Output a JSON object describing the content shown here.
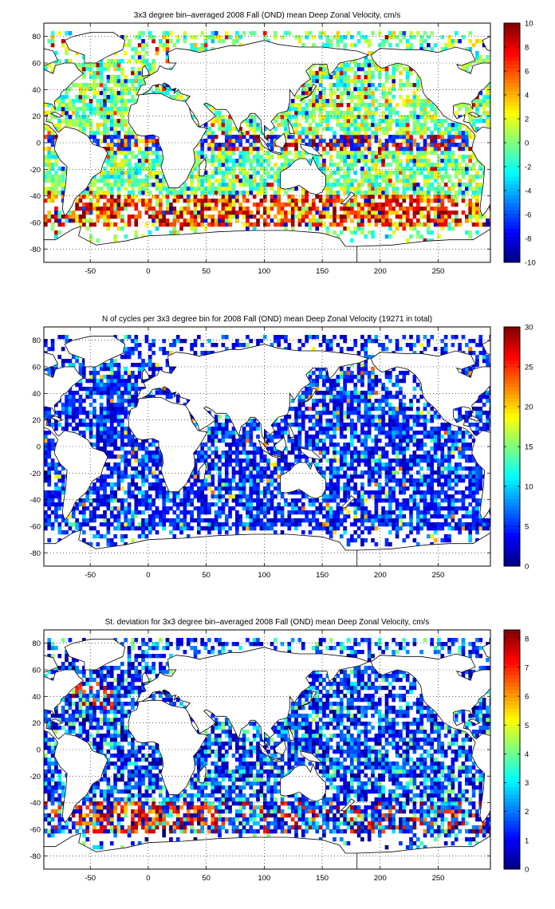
{
  "chart_data": [
    {
      "type": "heatmap",
      "title": "3x3 degree bin–averaged 2008 Fall (OND) mean Deep Zonal Velocity, cm/s",
      "xlim": [
        -90,
        295
      ],
      "ylim": [
        -90,
        90
      ],
      "xticks": [
        -50,
        0,
        50,
        100,
        150,
        200,
        250
      ],
      "yticks": [
        -80,
        -60,
        -40,
        -20,
        0,
        20,
        40,
        60,
        80
      ],
      "colorbar": {
        "min": -10,
        "max": 10,
        "ticks": [
          -10,
          -8,
          -6,
          -4,
          -2,
          0,
          2,
          4,
          6,
          8,
          10
        ],
        "colormap": "jet"
      },
      "bin_size_deg": 3,
      "field": "velocity",
      "grid": true
    },
    {
      "type": "heatmap",
      "title": "N of cycles per 3x3 degree bin for 2008 Fall (OND) mean Deep Zonal Velocity (19271 in total)",
      "xlim": [
        -90,
        295
      ],
      "ylim": [
        -90,
        90
      ],
      "xticks": [
        -50,
        0,
        50,
        100,
        150,
        200,
        250
      ],
      "yticks": [
        -80,
        -60,
        -40,
        -20,
        0,
        20,
        40,
        60,
        80
      ],
      "colorbar": {
        "min": 0,
        "max": 30,
        "ticks": [
          0,
          5,
          10,
          15,
          20,
          25,
          30
        ],
        "colormap": "jet"
      },
      "total_cycles": 19271,
      "bin_size_deg": 3,
      "field": "count",
      "grid": true
    },
    {
      "type": "heatmap",
      "title": "St. deviation for 3x3 degree bin–averaged 2008 Fall (OND) mean Deep Zonal Velocity, cm/s",
      "xlim": [
        -90,
        295
      ],
      "ylim": [
        -90,
        90
      ],
      "xticks": [
        -50,
        0,
        50,
        100,
        150,
        200,
        250
      ],
      "yticks": [
        -80,
        -60,
        -40,
        -20,
        0,
        20,
        40,
        60,
        80
      ],
      "colorbar": {
        "min": 0,
        "max": 8.3,
        "ticks": [
          0,
          1,
          2,
          3,
          4,
          5,
          6,
          7,
          8
        ],
        "colormap": "jet"
      },
      "bin_size_deg": 3,
      "field": "std",
      "grid": true
    }
  ]
}
